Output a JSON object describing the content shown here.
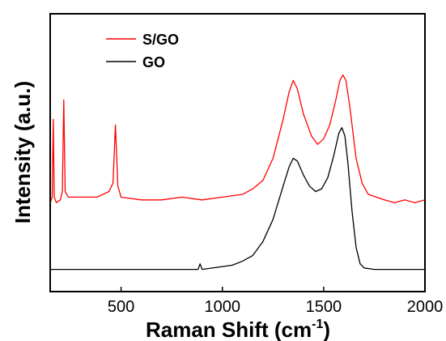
{
  "chart_data": {
    "type": "line",
    "title": "",
    "xlabel": "Raman Shift (cm",
    "xlabel_superscript": "-1",
    "xlabel_suffix": ")",
    "ylabel": "Intensity (a.u.)",
    "xlim": [
      150,
      2000
    ],
    "ylim": [
      0,
      1
    ],
    "x_tick_values": [
      500,
      1000,
      1500,
      2000
    ],
    "x_tick_labels": [
      "500",
      "1000",
      "1500",
      "2000"
    ],
    "y_ticks_shown": false,
    "grid": false,
    "legend_position": "top-left",
    "series": [
      {
        "name": "S/GO",
        "color": "#ff0000",
        "points": [
          [
            150,
            0.32
          ],
          [
            160,
            0.34
          ],
          [
            165,
            0.62
          ],
          [
            170,
            0.34
          ],
          [
            180,
            0.32
          ],
          [
            200,
            0.33
          ],
          [
            210,
            0.36
          ],
          [
            217,
            0.69
          ],
          [
            224,
            0.36
          ],
          [
            240,
            0.34
          ],
          [
            300,
            0.34
          ],
          [
            380,
            0.34
          ],
          [
            440,
            0.36
          ],
          [
            460,
            0.39
          ],
          [
            472,
            0.6
          ],
          [
            484,
            0.38
          ],
          [
            500,
            0.34
          ],
          [
            600,
            0.33
          ],
          [
            700,
            0.33
          ],
          [
            800,
            0.34
          ],
          [
            900,
            0.33
          ],
          [
            1000,
            0.34
          ],
          [
            1100,
            0.35
          ],
          [
            1150,
            0.37
          ],
          [
            1200,
            0.4
          ],
          [
            1250,
            0.48
          ],
          [
            1300,
            0.62
          ],
          [
            1330,
            0.72
          ],
          [
            1350,
            0.76
          ],
          [
            1370,
            0.73
          ],
          [
            1400,
            0.64
          ],
          [
            1440,
            0.56
          ],
          [
            1470,
            0.53
          ],
          [
            1500,
            0.55
          ],
          [
            1530,
            0.6
          ],
          [
            1560,
            0.69
          ],
          [
            1580,
            0.76
          ],
          [
            1595,
            0.78
          ],
          [
            1610,
            0.76
          ],
          [
            1630,
            0.66
          ],
          [
            1660,
            0.48
          ],
          [
            1690,
            0.39
          ],
          [
            1720,
            0.35
          ],
          [
            1760,
            0.34
          ],
          [
            1800,
            0.33
          ],
          [
            1850,
            0.32
          ],
          [
            1900,
            0.33
          ],
          [
            1950,
            0.32
          ],
          [
            2000,
            0.33
          ]
        ]
      },
      {
        "name": "GO",
        "color": "#000000",
        "points": [
          [
            150,
            0.08
          ],
          [
            200,
            0.08
          ],
          [
            300,
            0.08
          ],
          [
            400,
            0.08
          ],
          [
            500,
            0.08
          ],
          [
            600,
            0.08
          ],
          [
            700,
            0.08
          ],
          [
            800,
            0.08
          ],
          [
            880,
            0.08
          ],
          [
            890,
            0.1
          ],
          [
            900,
            0.08
          ],
          [
            1000,
            0.09
          ],
          [
            1050,
            0.095
          ],
          [
            1100,
            0.11
          ],
          [
            1150,
            0.13
          ],
          [
            1200,
            0.18
          ],
          [
            1250,
            0.26
          ],
          [
            1300,
            0.38
          ],
          [
            1330,
            0.45
          ],
          [
            1350,
            0.48
          ],
          [
            1370,
            0.47
          ],
          [
            1400,
            0.42
          ],
          [
            1430,
            0.38
          ],
          [
            1460,
            0.36
          ],
          [
            1490,
            0.37
          ],
          [
            1520,
            0.41
          ],
          [
            1550,
            0.49
          ],
          [
            1575,
            0.57
          ],
          [
            1590,
            0.59
          ],
          [
            1605,
            0.56
          ],
          [
            1620,
            0.46
          ],
          [
            1640,
            0.29
          ],
          [
            1660,
            0.16
          ],
          [
            1680,
            0.1
          ],
          [
            1700,
            0.085
          ],
          [
            1750,
            0.08
          ],
          [
            1800,
            0.08
          ],
          [
            1900,
            0.08
          ],
          [
            2000,
            0.08
          ]
        ]
      }
    ]
  }
}
